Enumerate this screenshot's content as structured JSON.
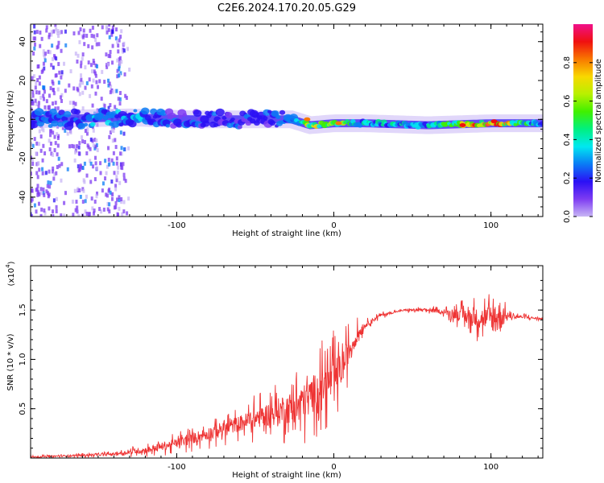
{
  "title": "C2E6.2024.170.20.05.G29",
  "chart_data": [
    {
      "type": "heatmap",
      "xlabel": "Height of straight line (km)",
      "ylabel": "Frequency (Hz)",
      "xlim": [
        -193,
        133
      ],
      "ylim": [
        -50,
        49
      ],
      "xticks": [
        -100,
        0,
        100
      ],
      "yticks": [
        -40,
        -20,
        0,
        20,
        40
      ],
      "grid": false,
      "colorbar": {
        "label": "Normalized spectral amplitude",
        "range": [
          0.0,
          1.0
        ],
        "ticks": [
          0.0,
          0.2,
          0.4,
          0.6,
          0.8
        ],
        "tick_labels": [
          "0.0",
          "0.2",
          "0.4",
          "0.6",
          "0.8"
        ],
        "colormap": [
          "#c8b6f5",
          "#7e3cf2",
          "#2a10f5",
          "#0a7cf5",
          "#00e8f0",
          "#00f080",
          "#40f000",
          "#b8f000",
          "#f8d800",
          "#f87800",
          "#f01010",
          "#f0108a"
        ]
      },
      "ridge": {
        "x": [
          -193,
          -130,
          -90,
          -50,
          -27,
          -15,
          0,
          20,
          60,
          100,
          133
        ],
        "freq": [
          0,
          1,
          0,
          0,
          0,
          -3,
          -2,
          -2,
          -3,
          -2,
          -2
        ],
        "amplitude": [
          0.25,
          0.3,
          0.2,
          0.2,
          0.25,
          0.7,
          0.55,
          0.4,
          0.35,
          0.9,
          0.3
        ]
      },
      "noise_region": {
        "x_range": [
          -193,
          -130
        ],
        "freq_range": [
          -50,
          49
        ]
      },
      "peaks": [
        {
          "x": -17,
          "freq": 0,
          "amplitude": 0.85
        },
        {
          "x": 3,
          "freq": -2,
          "amplitude": 0.85
        },
        {
          "x": 82,
          "freq": -3,
          "amplitude": 0.95
        },
        {
          "x": 102,
          "freq": -1,
          "amplitude": 0.95
        }
      ]
    },
    {
      "type": "line",
      "xlabel": "Height of straight line (km)",
      "ylabel": "SNR (10 * v/v)",
      "y_multiplier": "(x10",
      "y_multiplier_exp": "4",
      "xlim": [
        -193,
        133
      ],
      "ylim": [
        0,
        1.95
      ],
      "xticks": [
        -100,
        0,
        100
      ],
      "yticks": [
        0.5,
        1.0,
        1.5
      ],
      "ytick_labels": [
        "0.5",
        "1.0",
        "1.5"
      ],
      "grid": false,
      "series": [
        {
          "color": "#ee3333",
          "envelope": {
            "x": [
              -193,
              -140,
              -120,
              -100,
              -80,
              -60,
              -40,
              -20,
              -10,
              0,
              5,
              10,
              15,
              20,
              30,
              45,
              60,
              70,
              80,
              90,
              100,
              110,
              120,
              133
            ],
            "y": [
              0.01,
              0.04,
              0.08,
              0.15,
              0.25,
              0.35,
              0.45,
              0.55,
              0.7,
              0.8,
              0.9,
              1.1,
              1.25,
              1.35,
              1.45,
              1.5,
              1.5,
              1.48,
              1.45,
              1.42,
              1.42,
              1.44,
              1.43,
              1.41
            ]
          },
          "noise": {
            "x": [
              -193,
              -140,
              -100,
              -60,
              -40,
              -20,
              0,
              10,
              20,
              40,
              70,
              85,
              100,
              105,
              110,
              133
            ],
            "amplitude": [
              0.015,
              0.03,
              0.12,
              0.2,
              0.3,
              0.45,
              0.5,
              0.3,
              0.06,
              0.02,
              0.05,
              0.2,
              0.3,
              0.5,
              0.06,
              0.02
            ]
          }
        }
      ]
    }
  ]
}
